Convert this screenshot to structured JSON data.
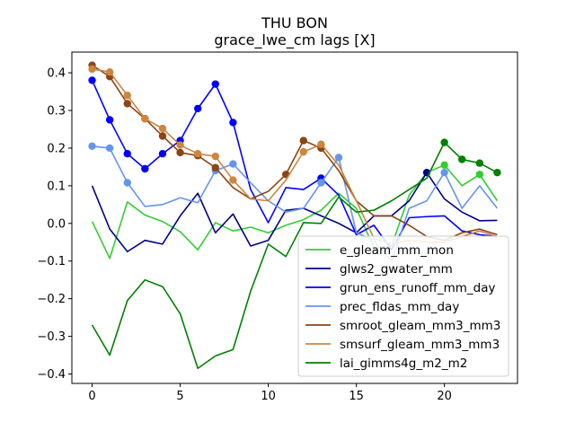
{
  "chart_data": {
    "type": "line",
    "title": "THU BON",
    "subtitle": "grace_lwe_cm lags [X]",
    "xlabel": "",
    "ylabel": "",
    "xlim": [
      -1.15,
      24.15
    ],
    "ylim": [
      -0.425,
      0.455
    ],
    "xticks": [
      0,
      5,
      10,
      15,
      20
    ],
    "yticks": [
      -0.4,
      -0.3,
      -0.2,
      -0.1,
      0.0,
      0.1,
      0.2,
      0.3,
      0.4
    ],
    "ytick_labels": [
      "−0.4",
      "−0.3",
      "−0.2",
      "−0.1",
      "0.0",
      "0.1",
      "0.2",
      "0.3",
      "0.4"
    ],
    "legend_position": "lower-right",
    "grid": false,
    "x": [
      0,
      1,
      2,
      3,
      4,
      5,
      6,
      7,
      8,
      9,
      10,
      11,
      12,
      13,
      14,
      15,
      16,
      17,
      18,
      19,
      20,
      21,
      22,
      23
    ],
    "series": [
      {
        "name": "e_gleam_mm_mon",
        "color": "#32cd32",
        "values": [
          0.005,
          -0.093,
          0.057,
          0.022,
          0.005,
          -0.022,
          -0.07,
          0.002,
          -0.02,
          -0.01,
          -0.025,
          -0.005,
          0.01,
          0.035,
          0.08,
          0.04,
          -0.065,
          -0.06,
          0.075,
          0.135,
          0.155,
          0.1,
          0.13,
          0.06
        ],
        "markers": [
          20,
          22
        ]
      },
      {
        "name": "glws2_gwater_mm",
        "color": "#00008b",
        "values": [
          0.1,
          -0.015,
          -0.075,
          -0.045,
          -0.055,
          0.02,
          0.08,
          -0.025,
          0.025,
          -0.06,
          -0.045,
          0.035,
          0.04,
          0.02,
          0.0,
          -0.025,
          0.02,
          0.02,
          0.06,
          0.135,
          0.065,
          0.03,
          0.007,
          0.008
        ],
        "markers": [
          19
        ]
      },
      {
        "name": "grun_ens_runoff_mm_day",
        "color": "#0000ff",
        "values": [
          0.38,
          0.275,
          0.185,
          0.145,
          0.185,
          0.22,
          0.305,
          0.37,
          0.268,
          0.09,
          0.002,
          0.095,
          0.09,
          0.12,
          0.075,
          -0.03,
          -0.005,
          -0.07,
          0.015,
          0.018,
          0.02,
          -0.02,
          -0.03,
          -0.035
        ],
        "markers": [
          0,
          1,
          2,
          3,
          4,
          5,
          6,
          7,
          8,
          13
        ]
      },
      {
        "name": "prec_fldas_mm_day",
        "color": "#6495ed",
        "values": [
          0.205,
          0.2,
          0.108,
          0.045,
          0.05,
          0.068,
          0.055,
          0.14,
          0.158,
          0.108,
          0.06,
          0.03,
          0.04,
          0.108,
          0.175,
          -0.025,
          -0.045,
          -0.1,
          0.04,
          0.06,
          0.135,
          0.04,
          0.1,
          0.04
        ],
        "markers": [
          0,
          1,
          2,
          7,
          8,
          13,
          14,
          20
        ]
      },
      {
        "name": "smroot_gleam_mm3_mm3",
        "color": "#8b4513",
        "values": [
          0.42,
          0.39,
          0.318,
          0.278,
          0.232,
          0.188,
          0.18,
          0.148,
          0.095,
          0.065,
          0.085,
          0.13,
          0.22,
          0.2,
          0.14,
          0.06,
          0.02,
          0.02,
          -0.005,
          -0.035,
          -0.045,
          -0.025,
          -0.015,
          -0.03
        ],
        "markers": [
          0,
          1,
          2,
          3,
          4,
          5,
          6,
          7,
          11,
          12,
          13
        ]
      },
      {
        "name": "smsurf_gleam_mm3_mm3",
        "color": "#cd853f",
        "values": [
          0.41,
          0.402,
          0.34,
          0.278,
          0.252,
          0.208,
          0.185,
          0.178,
          0.115,
          0.065,
          0.06,
          0.115,
          0.19,
          0.21,
          0.155,
          0.06,
          -0.04,
          -0.055,
          -0.045,
          -0.05,
          -0.05,
          -0.035,
          -0.02,
          -0.035
        ],
        "markers": [
          0,
          1,
          2,
          3,
          4,
          5,
          6,
          7,
          8,
          12,
          13
        ]
      },
      {
        "name": "lai_gimms4g_m2_m2",
        "color": "#008000",
        "values": [
          -0.27,
          -0.35,
          -0.205,
          -0.15,
          -0.168,
          -0.24,
          -0.385,
          -0.352,
          -0.335,
          -0.18,
          -0.055,
          -0.088,
          0.002,
          0.0,
          0.07,
          0.03,
          0.035,
          0.06,
          0.09,
          0.12,
          0.215,
          0.17,
          0.16,
          0.135
        ],
        "markers": [
          20,
          21,
          22,
          23
        ]
      }
    ]
  }
}
